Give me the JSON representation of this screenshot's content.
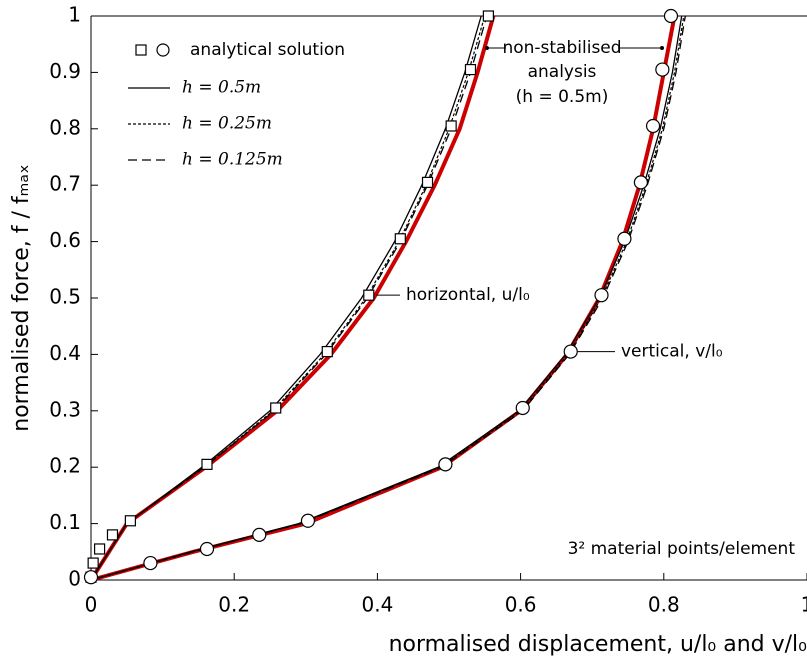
{
  "chart_data": {
    "type": "line",
    "x_label": "normalised displacement, u/l₀ and v/l₀",
    "y_label": "normalised force, f / fₘₐₓ",
    "xlim": [
      0,
      1
    ],
    "ylim": [
      0,
      1
    ],
    "xticks": [
      0,
      0.2,
      0.4,
      0.6,
      0.8,
      1
    ],
    "yticks": [
      0,
      0.1,
      0.2,
      0.3,
      0.4,
      0.5,
      0.6,
      0.7,
      0.8,
      0.9,
      1
    ],
    "series": [
      {
        "name": "analytical solution",
        "color": "#000000",
        "style": "markers",
        "branches": [
          {
            "marker": "square",
            "x": [
              0,
              0.003,
              0.012,
              0.03,
              0.055,
              0.162,
              0.258,
              0.33,
              0.388,
              0.432,
              0.47,
              0.503,
              0.53,
              0.555
            ],
            "values": [
              0.005,
              0.03,
              0.055,
              0.08,
              0.105,
              0.205,
              0.305,
              0.405,
              0.505,
              0.605,
              0.705,
              0.805,
              0.905,
              1.0
            ]
          },
          {
            "marker": "circle",
            "x": [
              0,
              0.083,
              0.162,
              0.235,
              0.303,
              0.495,
              0.603,
              0.67,
              0.713,
              0.745,
              0.768,
              0.785,
              0.798,
              0.81
            ],
            "values": [
              0.005,
              0.03,
              0.055,
              0.08,
              0.105,
              0.205,
              0.305,
              0.405,
              0.505,
              0.605,
              0.705,
              0.805,
              0.905,
              1.0
            ]
          }
        ]
      },
      {
        "name": "h = 0.5m",
        "color": "#000000",
        "style": "solid",
        "branches": [
          {
            "x": [
              0,
              0.05,
              0.155,
              0.25,
              0.32,
              0.378,
              0.424,
              0.462,
              0.495,
              0.522,
              0.545
            ],
            "values": [
              0,
              0.1,
              0.2,
              0.3,
              0.4,
              0.5,
              0.6,
              0.7,
              0.8,
              0.9,
              1
            ]
          },
          {
            "x": [
              0,
              0.14,
              0.29,
              0.485,
              0.598,
              0.663,
              0.71,
              0.745,
              0.772,
              0.795,
              0.812,
              0.825
            ],
            "values": [
              0,
              0.05,
              0.1,
              0.2,
              0.3,
              0.4,
              0.5,
              0.6,
              0.7,
              0.8,
              0.9,
              1
            ]
          }
        ]
      },
      {
        "name": "h = 0.25m",
        "color": "#000000",
        "style": "dotted",
        "branches": [
          {
            "x": [
              0,
              0.05,
              0.158,
              0.254,
              0.326,
              0.384,
              0.43,
              0.468,
              0.5,
              0.527,
              0.55
            ],
            "values": [
              0,
              0.1,
              0.2,
              0.3,
              0.4,
              0.5,
              0.6,
              0.7,
              0.8,
              0.9,
              1
            ]
          },
          {
            "x": [
              0,
              0.142,
              0.292,
              0.488,
              0.601,
              0.666,
              0.713,
              0.748,
              0.775,
              0.798,
              0.815,
              0.828
            ],
            "values": [
              0,
              0.05,
              0.1,
              0.2,
              0.3,
              0.4,
              0.5,
              0.6,
              0.7,
              0.8,
              0.9,
              1
            ]
          }
        ]
      },
      {
        "name": "h = 0.125m",
        "color": "#000000",
        "style": "dashed",
        "branches": [
          {
            "x": [
              0,
              0.05,
              0.159,
              0.256,
              0.328,
              0.386,
              0.432,
              0.47,
              0.503,
              0.53,
              0.553
            ],
            "values": [
              0,
              0.1,
              0.2,
              0.3,
              0.4,
              0.5,
              0.6,
              0.7,
              0.8,
              0.9,
              1
            ]
          },
          {
            "x": [
              0,
              0.143,
              0.293,
              0.49,
              0.603,
              0.668,
              0.715,
              0.75,
              0.777,
              0.8,
              0.817,
              0.83
            ],
            "values": [
              0,
              0.05,
              0.1,
              0.2,
              0.3,
              0.4,
              0.5,
              0.6,
              0.7,
              0.8,
              0.9,
              1
            ]
          }
        ]
      },
      {
        "color": "#cc0000",
        "style": "thick",
        "branches": [
          {
            "x": [
              0,
              0.05,
              0.16,
              0.26,
              0.335,
              0.395,
              0.44,
              0.48,
              0.515,
              0.54,
              0.562
            ],
            "values": [
              0,
              0.1,
              0.2,
              0.3,
              0.4,
              0.5,
              0.6,
              0.7,
              0.8,
              0.9,
              1
            ]
          },
          {
            "x": [
              0,
              0.143,
              0.3,
              0.49,
              0.6,
              0.665,
              0.71,
              0.742,
              0.766,
              0.785,
              0.8,
              0.815
            ],
            "values": [
              0,
              0.05,
              0.1,
              0.2,
              0.3,
              0.4,
              0.5,
              0.6,
              0.7,
              0.8,
              0.9,
              1
            ]
          }
        ]
      }
    ],
    "annotations": [
      {
        "text": "horizontal, u/l₀",
        "x": 0.39,
        "y": 0.505
      },
      {
        "text": "vertical, v/l₀",
        "x": 0.67,
        "y": 0.405
      },
      {
        "text": "non-stabilised",
        "x": 0.553,
        "y": 0.95
      },
      {
        "text": "analysis",
        "x": null,
        "y": null
      },
      {
        "text": "(h = 0.5m)",
        "x": null,
        "y": null
      },
      {
        "text": "3² material points/element",
        "x": null,
        "y": null
      }
    ]
  }
}
